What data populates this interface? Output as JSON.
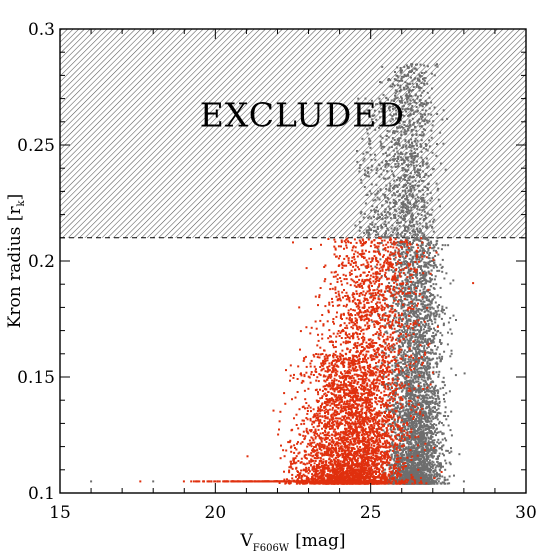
{
  "chart_data": {
    "type": "scatter",
    "title": "",
    "xlabel": "V",
    "xlabel_subscript": "F606W",
    "xlabel_unit": "[mag]",
    "ylabel": "Kron radius [r",
    "ylabel_subscript": "k",
    "ylabel_close": "]",
    "xlim": [
      15,
      30
    ],
    "ylim": [
      0.1,
      0.3
    ],
    "xticks": [
      15,
      20,
      25,
      30
    ],
    "xtick_labels": [
      "15",
      "20",
      "25",
      "30"
    ],
    "yticks": [
      0.1,
      0.15,
      0.2,
      0.25,
      0.3
    ],
    "ytick_labels": [
      "0.1",
      "0.15",
      "0.2",
      "0.25",
      "0.3"
    ],
    "grid": false,
    "excluded_region": {
      "y_from": 0.21,
      "y_to": 0.3,
      "label": "EXCLUDED",
      "label_x": 22.8,
      "label_y": 0.258
    },
    "series": [
      {
        "color": "#6e6e6e",
        "description_points": [
          [
            26.2,
            0.28
          ],
          [
            26.5,
            0.27
          ],
          [
            26.1,
            0.26
          ],
          [
            26.8,
            0.25
          ],
          [
            25.9,
            0.245
          ],
          [
            26.4,
            0.24
          ],
          [
            26.6,
            0.23
          ],
          [
            25.8,
            0.225
          ],
          [
            26.9,
            0.22
          ],
          [
            26.3,
            0.215
          ],
          [
            27.0,
            0.2
          ],
          [
            26.7,
            0.19
          ],
          [
            26.9,
            0.18
          ],
          [
            27.1,
            0.16
          ],
          [
            26.6,
            0.15
          ],
          [
            27.2,
            0.13
          ],
          [
            26.8,
            0.12
          ],
          [
            27.4,
            0.11
          ],
          [
            26.5,
            0.106
          ],
          [
            28.0,
            0.105
          ],
          [
            16.0,
            0.105
          ],
          [
            18.0,
            0.105
          ],
          [
            24.6,
            0.27
          ],
          [
            24.9,
            0.24
          ]
        ],
        "clusters": [
          {
            "x_mean": 26.25,
            "x_sd": 0.42,
            "y_min": 0.104,
            "y_max": 0.285,
            "count": 3400
          },
          {
            "x_mean": 26.7,
            "x_sd": 0.35,
            "y_min": 0.104,
            "y_max": 0.21,
            "count": 1500
          },
          {
            "x_mean": 25.3,
            "x_sd": 0.4,
            "y_min": 0.21,
            "y_max": 0.27,
            "count": 250
          }
        ]
      },
      {
        "color": "#e0300e",
        "description_points": [
          [
            22.5,
            0.208
          ],
          [
            23.4,
            0.207
          ],
          [
            22.7,
            0.18
          ],
          [
            23.8,
            0.175
          ],
          [
            24.2,
            0.16
          ],
          [
            25.2,
            0.2
          ],
          [
            25.9,
            0.205
          ],
          [
            24.8,
            0.14
          ],
          [
            23.6,
            0.12
          ],
          [
            24.1,
            0.11
          ],
          [
            22.1,
            0.115
          ],
          [
            20.0,
            0.105
          ],
          [
            22.0,
            0.105
          ],
          [
            24.5,
            0.105
          ],
          [
            25.5,
            0.15
          ],
          [
            26.0,
            0.19
          ]
        ],
        "clusters": [
          {
            "x_mean": 25.2,
            "x_sd": 0.75,
            "y_min": 0.104,
            "y_max": 0.21,
            "count": 3600
          },
          {
            "x_mean": 24.1,
            "x_sd": 0.7,
            "y_min": 0.104,
            "y_max": 0.16,
            "count": 1400
          },
          {
            "x_mean": 22.5,
            "x_sd": 1.6,
            "y_min": 0.105,
            "y_max": 0.105,
            "count": 260
          }
        ]
      }
    ]
  }
}
